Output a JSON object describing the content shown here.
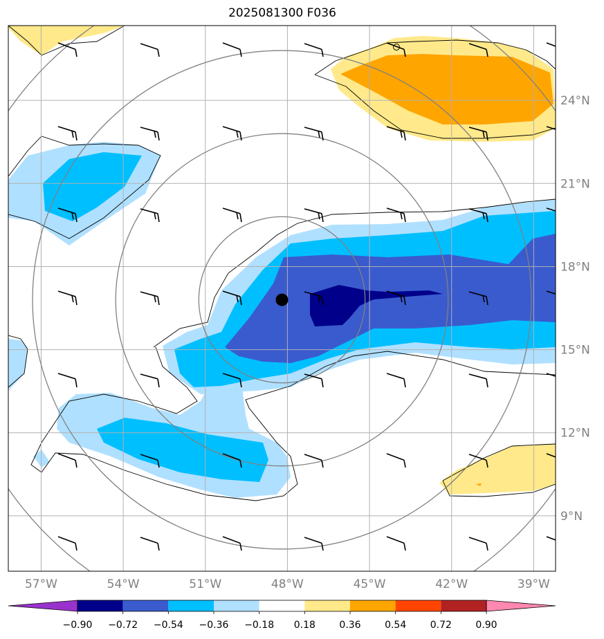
{
  "title": "2025081300 F036",
  "map": {
    "lon_range": [
      -58.2,
      -38.2
    ],
    "lat_range": [
      7.0,
      26.7
    ],
    "lon_ticks": [
      {
        "value": -57,
        "label": "57°W"
      },
      {
        "value": -54,
        "label": "54°W"
      },
      {
        "value": -51,
        "label": "51°W"
      },
      {
        "value": -48,
        "label": "48°W"
      },
      {
        "value": -45,
        "label": "45°W"
      },
      {
        "value": -42,
        "label": "42°W"
      },
      {
        "value": -39,
        "label": "39°W"
      }
    ],
    "lat_ticks": [
      {
        "value": 9,
        "label": "9°N"
      },
      {
        "value": 12,
        "label": "12°N"
      },
      {
        "value": 15,
        "label": "15°N"
      },
      {
        "value": 18,
        "label": "18°N"
      },
      {
        "value": 21,
        "label": "21°N"
      },
      {
        "value": 24,
        "label": "24°N"
      }
    ],
    "storm_center": {
      "lon": -48.2,
      "lat": 16.8
    },
    "range_rings_deg": [
      3,
      6,
      9,
      12
    ],
    "grid": true
  },
  "colorbar": {
    "colors": [
      "#9932cc",
      "#00008b",
      "#3a5bcd",
      "#00bfff",
      "#b0e0ff",
      "#ffffff",
      "#ffe98a",
      "#ffa500",
      "#ff4500",
      "#b22222",
      "#ff88b0"
    ],
    "labels": [
      "−0.90",
      "−0.72",
      "−0.54",
      "−0.36",
      "−0.18",
      "0.18",
      "0.36",
      "0.54",
      "0.72",
      "0.90"
    ],
    "extend": "both"
  },
  "colors": {
    "grid": "#b0b0b0",
    "ring": "#808080",
    "contour": "#000000"
  }
}
